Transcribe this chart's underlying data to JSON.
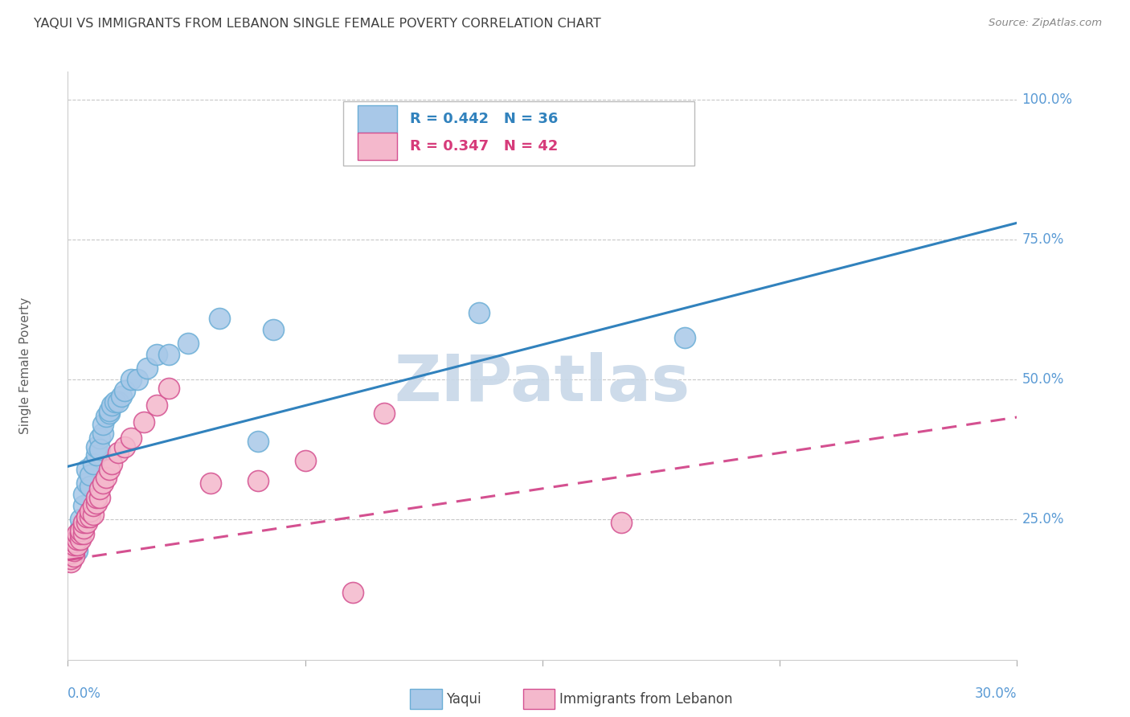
{
  "title": "YAQUI VS IMMIGRANTS FROM LEBANON SINGLE FEMALE POVERTY CORRELATION CHART",
  "source": "Source: ZipAtlas.com",
  "ylabel": "Single Female Poverty",
  "ytick_vals": [
    0.0,
    0.25,
    0.5,
    0.75,
    1.0
  ],
  "ytick_labels": [
    "",
    "25.0%",
    "50.0%",
    "75.0%",
    "100.0%"
  ],
  "xlim": [
    0.0,
    0.3
  ],
  "ylim": [
    0.0,
    1.05
  ],
  "legend_entries": [
    {
      "label": "R = 0.442   N = 36",
      "color": "#6baed6",
      "line_color": "#3182bd"
    },
    {
      "label": "R = 0.347   N = 42",
      "color": "#f4a5c0",
      "line_color": "#d63b7a"
    }
  ],
  "legend_name_yaqui": "Yaqui",
  "legend_name_lebanon": "Immigrants from Lebanon",
  "background_color": "#ffffff",
  "grid_color": "#c8c8c8",
  "watermark": "ZIPatlas",
  "watermark_color": "#c8d8e8",
  "title_color": "#404040",
  "axis_label_color": "#5b9bd5",
  "ylabel_color": "#606060",
  "yaqui_x": [
    0.003,
    0.003,
    0.004,
    0.004,
    0.005,
    0.005,
    0.006,
    0.006,
    0.007,
    0.007,
    0.008,
    0.009,
    0.009,
    0.01,
    0.01,
    0.011,
    0.011,
    0.012,
    0.013,
    0.013,
    0.014,
    0.015,
    0.016,
    0.017,
    0.018,
    0.02,
    0.022,
    0.025,
    0.028,
    0.032,
    0.038,
    0.048,
    0.06,
    0.065,
    0.13,
    0.195
  ],
  "yaqui_y": [
    0.195,
    0.215,
    0.235,
    0.25,
    0.275,
    0.295,
    0.315,
    0.34,
    0.31,
    0.33,
    0.35,
    0.365,
    0.38,
    0.395,
    0.375,
    0.405,
    0.42,
    0.435,
    0.44,
    0.445,
    0.455,
    0.46,
    0.46,
    0.47,
    0.48,
    0.5,
    0.5,
    0.52,
    0.545,
    0.545,
    0.565,
    0.61,
    0.39,
    0.59,
    0.62,
    0.575
  ],
  "lebanon_x": [
    0.001,
    0.001,
    0.001,
    0.002,
    0.002,
    0.002,
    0.002,
    0.003,
    0.003,
    0.003,
    0.004,
    0.004,
    0.004,
    0.005,
    0.005,
    0.005,
    0.006,
    0.006,
    0.007,
    0.007,
    0.008,
    0.008,
    0.009,
    0.009,
    0.01,
    0.01,
    0.011,
    0.012,
    0.013,
    0.014,
    0.016,
    0.018,
    0.02,
    0.024,
    0.028,
    0.032,
    0.045,
    0.06,
    0.075,
    0.09,
    0.1,
    0.175
  ],
  "lebanon_y": [
    0.175,
    0.18,
    0.19,
    0.185,
    0.195,
    0.205,
    0.21,
    0.205,
    0.215,
    0.225,
    0.215,
    0.225,
    0.23,
    0.225,
    0.235,
    0.245,
    0.245,
    0.255,
    0.255,
    0.265,
    0.26,
    0.275,
    0.28,
    0.29,
    0.29,
    0.305,
    0.315,
    0.325,
    0.34,
    0.35,
    0.37,
    0.38,
    0.395,
    0.425,
    0.455,
    0.485,
    0.315,
    0.32,
    0.355,
    0.12,
    0.44,
    0.245
  ],
  "yaqui_color": "#a8c8e8",
  "yaqui_edge_color": "#6baed6",
  "lebanon_color": "#f4b8cc",
  "lebanon_edge_color": "#d45090",
  "yaqui_line_color": "#3182bd",
  "lebanon_line_color": "#d45090",
  "yaqui_intercept": 0.345,
  "yaqui_slope": 1.45,
  "lebanon_intercept": 0.178,
  "lebanon_slope": 0.85
}
